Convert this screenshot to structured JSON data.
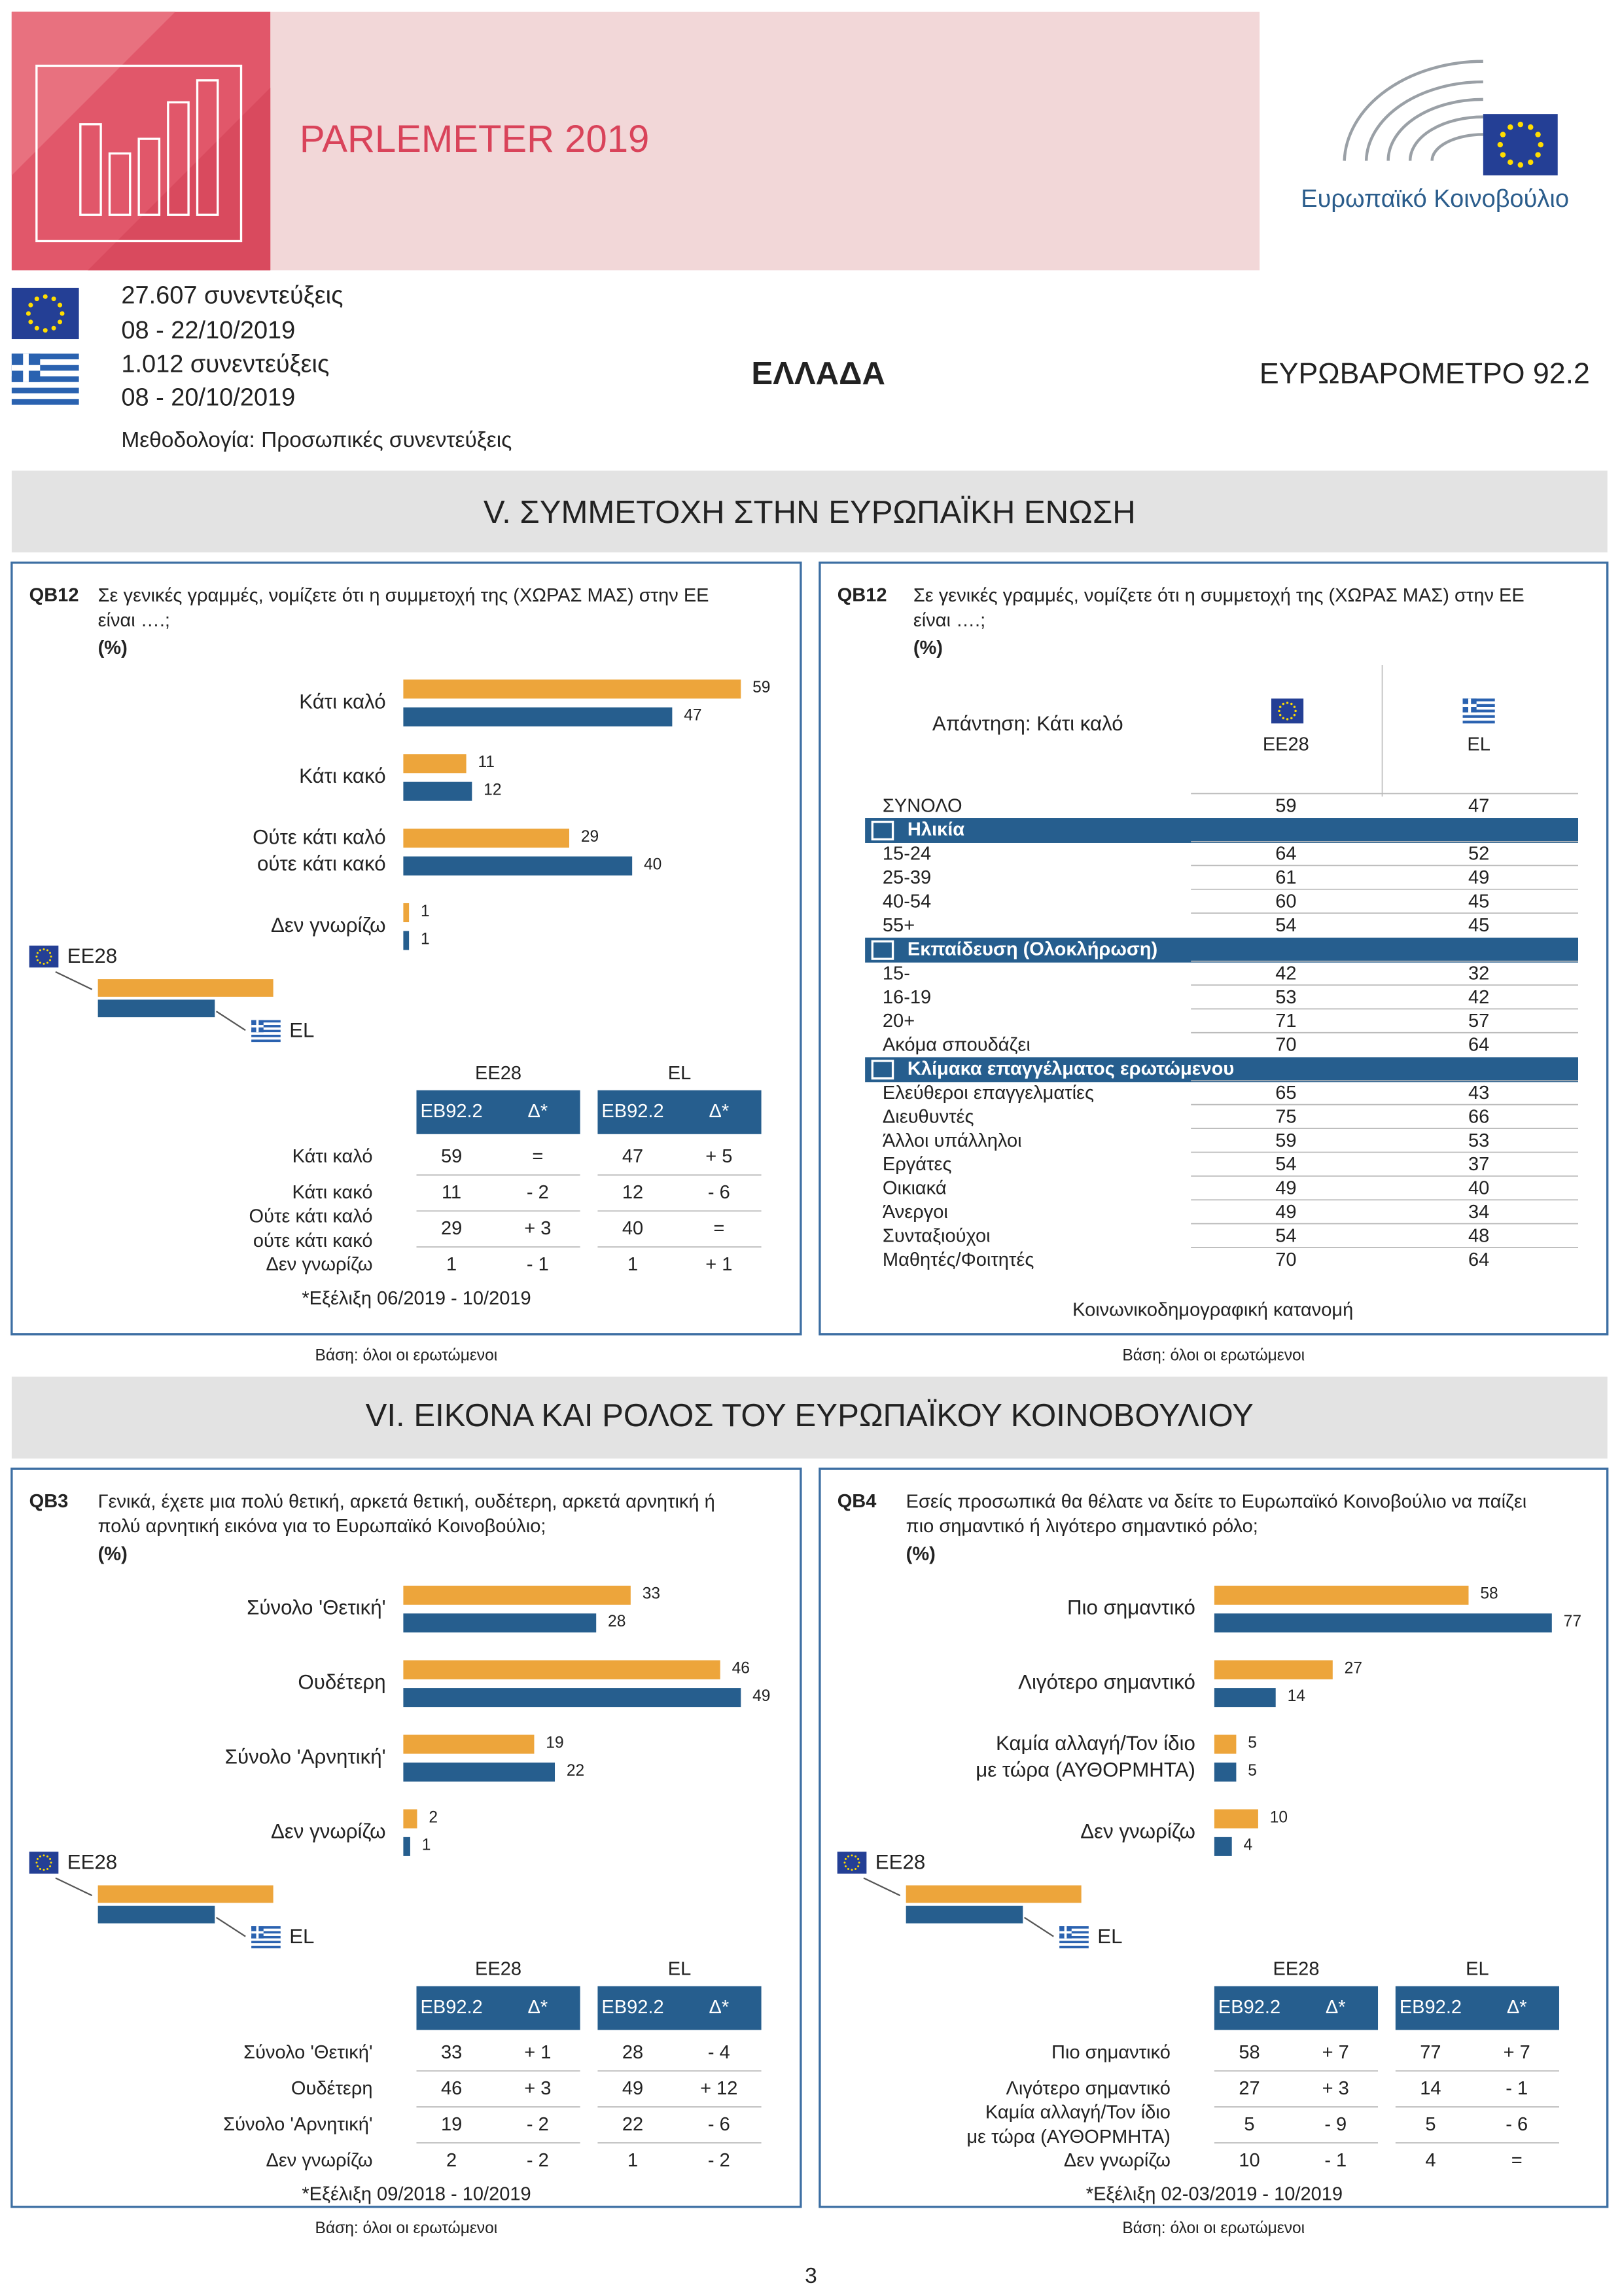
{
  "header": {
    "title": "PARLEMETER 2019",
    "organization": "Ευρωπαϊκό Κοινοβούλιο"
  },
  "info": {
    "eu_interviews": "27.607 συνεντεύξεις",
    "eu_dates": "08 - 22/10/2019",
    "el_interviews": "1.012 συνεντεύξεις",
    "el_dates": "08 - 20/10/2019",
    "methodology": "Μεθοδολογία: Προσωπικές συνεντεύξεις",
    "country": "ΕΛΛΑΔΑ",
    "survey": "ΕΥΡΩΒΑΡΟΜΕΤΡΟ 92.2"
  },
  "sections": [
    "V. ΣΥΜΜΕΤΟΧΗ ΣΤΗΝ ΕΥΡΩΠΑΪΚΗ ΕΝΩΣΗ",
    "VI. ΕΙΚΟΝΑ ΚΑΙ ΡΟΛΟΣ ΤΟΥ ΕΥΡΩΠΑΪΚΟΥ ΚΟΙΝΟΒΟΥΛΙΟΥ"
  ],
  "panels": [
    {
      "type": "bar",
      "code": "QB12",
      "question": "Σε γενικές γραμμές, νομίζετε ότι η συμμετοχή της (ΧΩΡΑΣ ΜΑΣ) στην ΕΕ\nείναι ….;",
      "unit": "(%)",
      "categories": [
        "Κάτι καλό",
        "Κάτι κακό",
        "Ούτε κάτι καλό\nούτε κάτι κακό",
        "Δεν γνωρίζω"
      ],
      "series": [
        {
          "name": "EE28",
          "color": "#eda53b",
          "values": [
            59,
            11,
            29,
            1
          ]
        },
        {
          "name": "EL",
          "color": "#265e8e",
          "values": [
            47,
            12,
            40,
            1
          ]
        }
      ],
      "table": {
        "columns": [
          "EB92.2",
          "Δ*"
        ],
        "changes": [
          [
            "=",
            "- 2",
            "+ 3",
            "- 1"
          ],
          [
            "+ 5",
            "- 6",
            "=",
            "+ 1"
          ]
        ]
      },
      "note": "*Εξέλιξη 06/2019 - 10/2019",
      "base": "Βάση: όλοι οι ερωτώμενοι"
    },
    {
      "type": "table",
      "code": "QB12",
      "question": "Σε γενικές γραμμές, νομίζετε ότι η συμμετοχή της (ΧΩΡΑΣ ΜΑΣ) στην ΕΕ\nείναι ….;",
      "unit": "(%)",
      "answer": "Απάντηση: Κάτι καλό",
      "columns": [
        "EE28",
        "EL"
      ],
      "total": {
        "label": "ΣΥΝΟΛΟ",
        "values": [
          59,
          47
        ]
      },
      "groups": [
        {
          "title": "Ηλικία",
          "rows": [
            {
              "label": "15-24",
              "values": [
                64,
                52
              ]
            },
            {
              "label": "25-39",
              "values": [
                61,
                49
              ]
            },
            {
              "label": "40-54",
              "values": [
                60,
                45
              ]
            },
            {
              "label": "55+",
              "values": [
                54,
                45
              ]
            }
          ]
        },
        {
          "title": "Εκπαίδευση (Ολοκλήρωση)",
          "rows": [
            {
              "label": "15-",
              "values": [
                42,
                32
              ]
            },
            {
              "label": "16-19",
              "values": [
                53,
                42
              ]
            },
            {
              "label": "20+",
              "values": [
                71,
                57
              ]
            },
            {
              "label": "Ακόμα σπουδάζει",
              "values": [
                70,
                64
              ]
            }
          ]
        },
        {
          "title": "Κλίμακα επαγγέλματος ερωτώμενου",
          "rows": [
            {
              "label": "Ελεύθεροι επαγγελματίες",
              "values": [
                65,
                43
              ]
            },
            {
              "label": "Διευθυντές",
              "values": [
                75,
                66
              ]
            },
            {
              "label": "Άλλοι υπάλληλοι",
              "values": [
                59,
                53
              ]
            },
            {
              "label": "Εργάτες",
              "values": [
                54,
                37
              ]
            },
            {
              "label": "Οικιακά",
              "values": [
                49,
                40
              ]
            },
            {
              "label": "Άνεργοι",
              "values": [
                49,
                34
              ]
            },
            {
              "label": "Συνταξιούχοι",
              "values": [
                54,
                48
              ]
            },
            {
              "label": "Μαθητές/Φοιτητές",
              "values": [
                70,
                64
              ]
            }
          ]
        }
      ],
      "footer": "Κοινωνικοδημογραφική κατανομή",
      "base": "Βάση: όλοι οι ερωτώμενοι"
    },
    {
      "type": "bar",
      "code": "QB3",
      "question": "Γενικά, έχετε μια πολύ θετική, αρκετά θετική, ουδέτερη, αρκετά αρνητική ή\nπολύ αρνητική εικόνα για το Ευρωπαϊκό Κοινοβούλιο;",
      "unit": "(%)",
      "categories": [
        "Σύνολο 'Θετική'",
        "Ουδέτερη",
        "Σύνολο 'Αρνητική'",
        "Δεν γνωρίζω"
      ],
      "series": [
        {
          "name": "EE28",
          "color": "#eda53b",
          "values": [
            33,
            46,
            19,
            2
          ]
        },
        {
          "name": "EL",
          "color": "#265e8e",
          "values": [
            28,
            49,
            22,
            1
          ]
        }
      ],
      "table": {
        "columns": [
          "EB92.2",
          "Δ*"
        ],
        "changes": [
          [
            "+ 1",
            "+ 3",
            "- 2",
            "- 2"
          ],
          [
            "- 4",
            "+ 12",
            "- 6",
            "- 2"
          ]
        ]
      },
      "note": "*Εξέλιξη 09/2018 - 10/2019",
      "base": "Βάση: όλοι οι ερωτώμενοι"
    },
    {
      "type": "bar",
      "code": "QB4",
      "question": "Εσείς προσωπικά θα θέλατε να δείτε το Ευρωπαϊκό Κοινοβούλιο να παίζει\nπιο σημαντικό ή λιγότερο σημαντικό ρόλο;",
      "unit": "(%)",
      "categories": [
        "Πιο σημαντικό",
        "Λιγότερο σημαντικό",
        "Καμία αλλαγή/Τον ίδιο\nμε τώρα (ΑΥΘΟΡΜΗΤΑ)",
        "Δεν γνωρίζω"
      ],
      "series": [
        {
          "name": "EE28",
          "color": "#eda53b",
          "values": [
            58,
            27,
            5,
            10
          ]
        },
        {
          "name": "EL",
          "color": "#265e8e",
          "values": [
            77,
            14,
            5,
            4
          ]
        }
      ],
      "table": {
        "columns": [
          "EB92.2",
          "Δ*"
        ],
        "changes": [
          [
            "+ 7",
            "+ 3",
            "- 9",
            "- 1"
          ],
          [
            "+ 7",
            "- 1",
            "- 6",
            "="
          ]
        ]
      },
      "note": "*Εξέλιξη 02-03/2019 - 10/2019",
      "base": "Βάση: όλοι οι ερωτώμενοι"
    }
  ],
  "page_number": "3"
}
